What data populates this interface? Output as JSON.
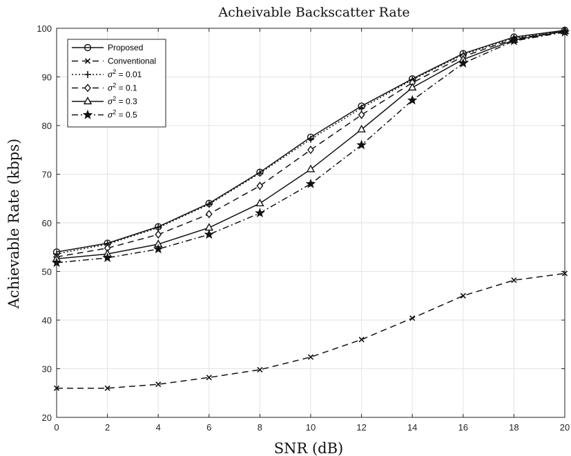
{
  "chart_data": {
    "type": "line",
    "title": "Acheivable Backscatter Rate",
    "xlabel": "SNR (dB)",
    "ylabel": "Achievable Rate (kbps)",
    "xlim": [
      0,
      20
    ],
    "ylim": [
      20,
      100
    ],
    "xticks": [
      0,
      2,
      4,
      6,
      8,
      10,
      12,
      14,
      16,
      18,
      20
    ],
    "yticks": [
      20,
      30,
      40,
      50,
      60,
      70,
      80,
      90,
      100
    ],
    "grid": true,
    "legend_position": "top-left",
    "x": [
      0,
      2,
      4,
      6,
      8,
      10,
      12,
      14,
      16,
      18,
      20
    ],
    "series": [
      {
        "name": "Proposed",
        "marker": "circle",
        "dash": "solid",
        "values": [
          54,
          55.8,
          59.2,
          64,
          70.4,
          77.6,
          84,
          89.6,
          94.8,
          98.2,
          99.6
        ]
      },
      {
        "name": "Conventional",
        "marker": "x",
        "dash": "dashed",
        "values": [
          26,
          26,
          26.8,
          28.2,
          29.8,
          32.4,
          36,
          40.4,
          45,
          48.2,
          49.6
        ]
      },
      {
        "name": "= 0.01",
        "sigma": "σ",
        "sup": "2",
        "marker": "plus",
        "dash": "dotted",
        "values": [
          53.6,
          55.6,
          59,
          63.8,
          70.2,
          77.2,
          83.6,
          89.4,
          94.6,
          98,
          99.4
        ]
      },
      {
        "name": "= 0.1",
        "sigma": "σ",
        "sup": "2",
        "marker": "diamond",
        "dash": "dashed",
        "values": [
          53,
          54.8,
          57.6,
          61.8,
          67.6,
          75,
          82.2,
          88.8,
          94.2,
          97.8,
          99.4
        ]
      },
      {
        "name": "= 0.3",
        "sigma": "σ",
        "sup": "2",
        "marker": "triangle",
        "dash": "solid",
        "values": [
          52.6,
          53.6,
          55.6,
          59,
          64,
          71,
          79.2,
          87.8,
          93.6,
          97.6,
          99.4
        ]
      },
      {
        "name": "= 0.5",
        "sigma": "σ",
        "sup": "2",
        "marker": "star",
        "dash": "dashdot",
        "values": [
          51.8,
          52.8,
          54.6,
          57.6,
          62,
          68,
          76,
          85.2,
          92.8,
          97.4,
          99.2
        ]
      }
    ]
  }
}
